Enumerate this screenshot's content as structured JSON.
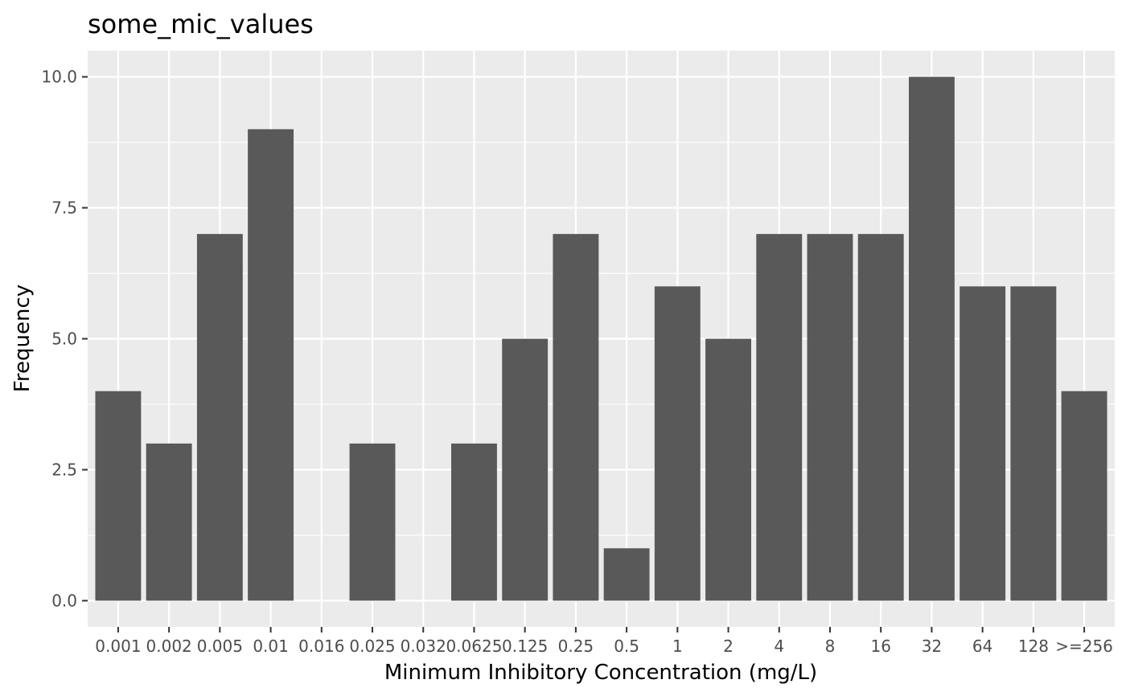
{
  "chart_data": {
    "type": "bar",
    "title": "some_mic_values",
    "xlabel": "Minimum Inhibitory Concentration (mg/L)",
    "ylabel": "Frequency",
    "categories": [
      "0.001",
      "0.002",
      "0.005",
      "0.01",
      "0.016",
      "0.025",
      "0.032",
      "0.0625",
      "0.125",
      "0.25",
      "0.5",
      "1",
      "2",
      "4",
      "8",
      "16",
      "32",
      "64",
      "128",
      ">=256"
    ],
    "values": [
      4,
      3,
      7,
      9,
      0,
      3,
      0,
      3,
      5,
      7,
      1,
      6,
      5,
      7,
      7,
      7,
      10,
      6,
      6,
      4
    ],
    "ylim": [
      -0.5,
      10.5
    ],
    "yticks": [
      0,
      2.5,
      5,
      7.5,
      10
    ],
    "ytick_labels": [
      "0.0",
      "2.5",
      "5.0",
      "7.5",
      "10.0"
    ],
    "grid": true,
    "colors": {
      "bar": "#595959",
      "panel": "#ebebeb",
      "grid": "#ffffff"
    }
  }
}
